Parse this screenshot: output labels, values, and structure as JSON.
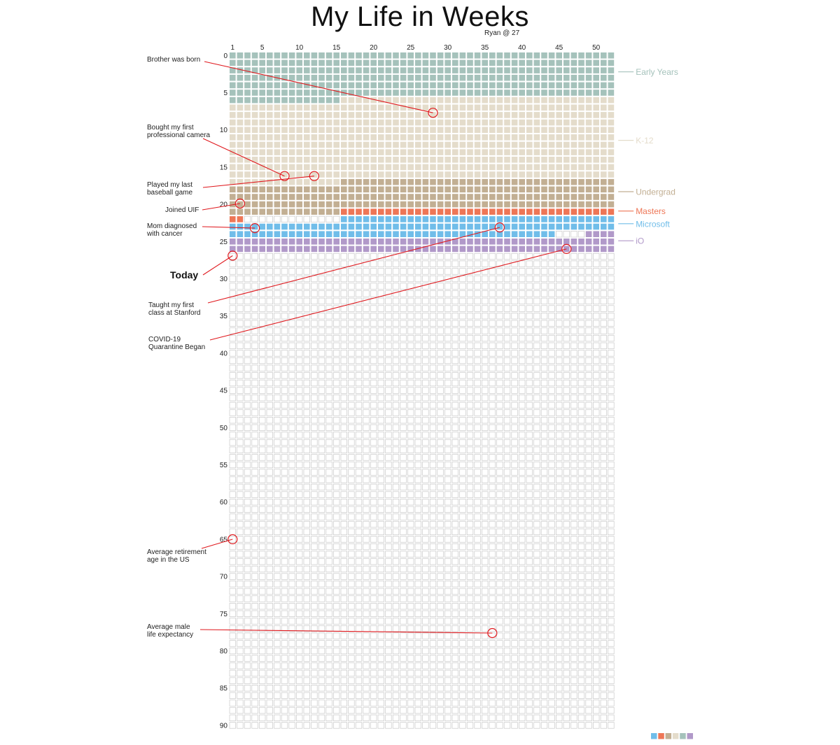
{
  "title": "My Life in Weeks",
  "subtitle": "Ryan @ 27",
  "chart_data": {
    "type": "heatmap",
    "title": "My Life in Weeks",
    "subtitle": "Ryan @ 27",
    "x_unit": "week of year",
    "y_unit": "age (years)",
    "weeks_per_year": 52,
    "years": 91,
    "x_ticks": [
      1,
      5,
      10,
      15,
      20,
      25,
      30,
      35,
      40,
      45,
      50
    ],
    "y_ticks": [
      0,
      5,
      10,
      15,
      20,
      25,
      30,
      35,
      40,
      45,
      50,
      55,
      60,
      65,
      70,
      75,
      80,
      85,
      90
    ],
    "grid": true,
    "empty_color": "#ffffff",
    "empty_border": "#c8c8c8",
    "periods": [
      {
        "id": "early",
        "label": "Early Years",
        "color": "#a5c2bb",
        "start": {
          "year": 0,
          "week": 1
        },
        "end": {
          "year": 6,
          "week": 15
        },
        "label_year": 2.2
      },
      {
        "id": "k12",
        "label": "K-12",
        "color": "#e4dccb",
        "start": {
          "year": 6,
          "week": 16
        },
        "end": {
          "year": 17,
          "week": 15
        },
        "label_year": 11.4
      },
      {
        "id": "undergrad",
        "label": "Undergrad",
        "color": "#c2af93",
        "start": {
          "year": 17,
          "week": 16
        },
        "end": {
          "year": 21,
          "week": 15
        },
        "label_year": 18.3
      },
      {
        "id": "masters",
        "label": "Masters",
        "color": "#ee7656",
        "start": {
          "year": 21,
          "week": 16
        },
        "end": {
          "year": 22,
          "week": 2
        },
        "label_year": 20.9
      },
      {
        "id": "microsoft",
        "label": "Microsoft",
        "color": "#70bde9",
        "start": {
          "year": 22,
          "week": 16
        },
        "end": {
          "year": 24,
          "week": 44
        },
        "label_year": 22.6
      },
      {
        "id": "io",
        "label": "iO",
        "color": "#b199c9",
        "start": {
          "year": 24,
          "week": 49
        },
        "end": {
          "year": 26,
          "week": 52
        },
        "label_year": 24.9
      }
    ],
    "annotations": [
      {
        "text": [
          "Brother was born"
        ],
        "year": 7.7,
        "week": 28,
        "anchor": "right"
      },
      {
        "text": [
          "Bought my first",
          "professional camera"
        ],
        "year": 16.2,
        "week": 8,
        "anchor": "right"
      },
      {
        "text": [
          "Played my last",
          "baseball game"
        ],
        "year": 16.2,
        "week": 12,
        "anchor": "right"
      },
      {
        "text": [
          "Joined UIF"
        ],
        "year": 19.9,
        "week": 2,
        "anchor": "right"
      },
      {
        "text": [
          "Mom diagnosed",
          "with cancer"
        ],
        "year": 23.2,
        "week": 4,
        "anchor": "right"
      },
      {
        "text": [
          "Today"
        ],
        "year": 26.9,
        "week": 1,
        "anchor": "right",
        "bold": true
      },
      {
        "text": [
          "Taught my first",
          "class at Stanford"
        ],
        "year": 23.1,
        "week": 37,
        "anchor": "right"
      },
      {
        "text": [
          "COVID-19",
          "Quarantine Began"
        ],
        "year": 26.0,
        "week": 46,
        "anchor": "right"
      },
      {
        "text": [
          "Average retirement",
          "age in the US"
        ],
        "year": 65,
        "week": 1,
        "anchor": "right"
      },
      {
        "text": [
          "Average male",
          "life expectancy"
        ],
        "year": 77.6,
        "week": 36,
        "anchor": "right"
      }
    ],
    "legend_swatches": [
      "#70bde9",
      "#ee7656",
      "#c2af93",
      "#e4dccb",
      "#a5c2bb",
      "#b199c9"
    ],
    "legend_position": "bottom-right"
  }
}
